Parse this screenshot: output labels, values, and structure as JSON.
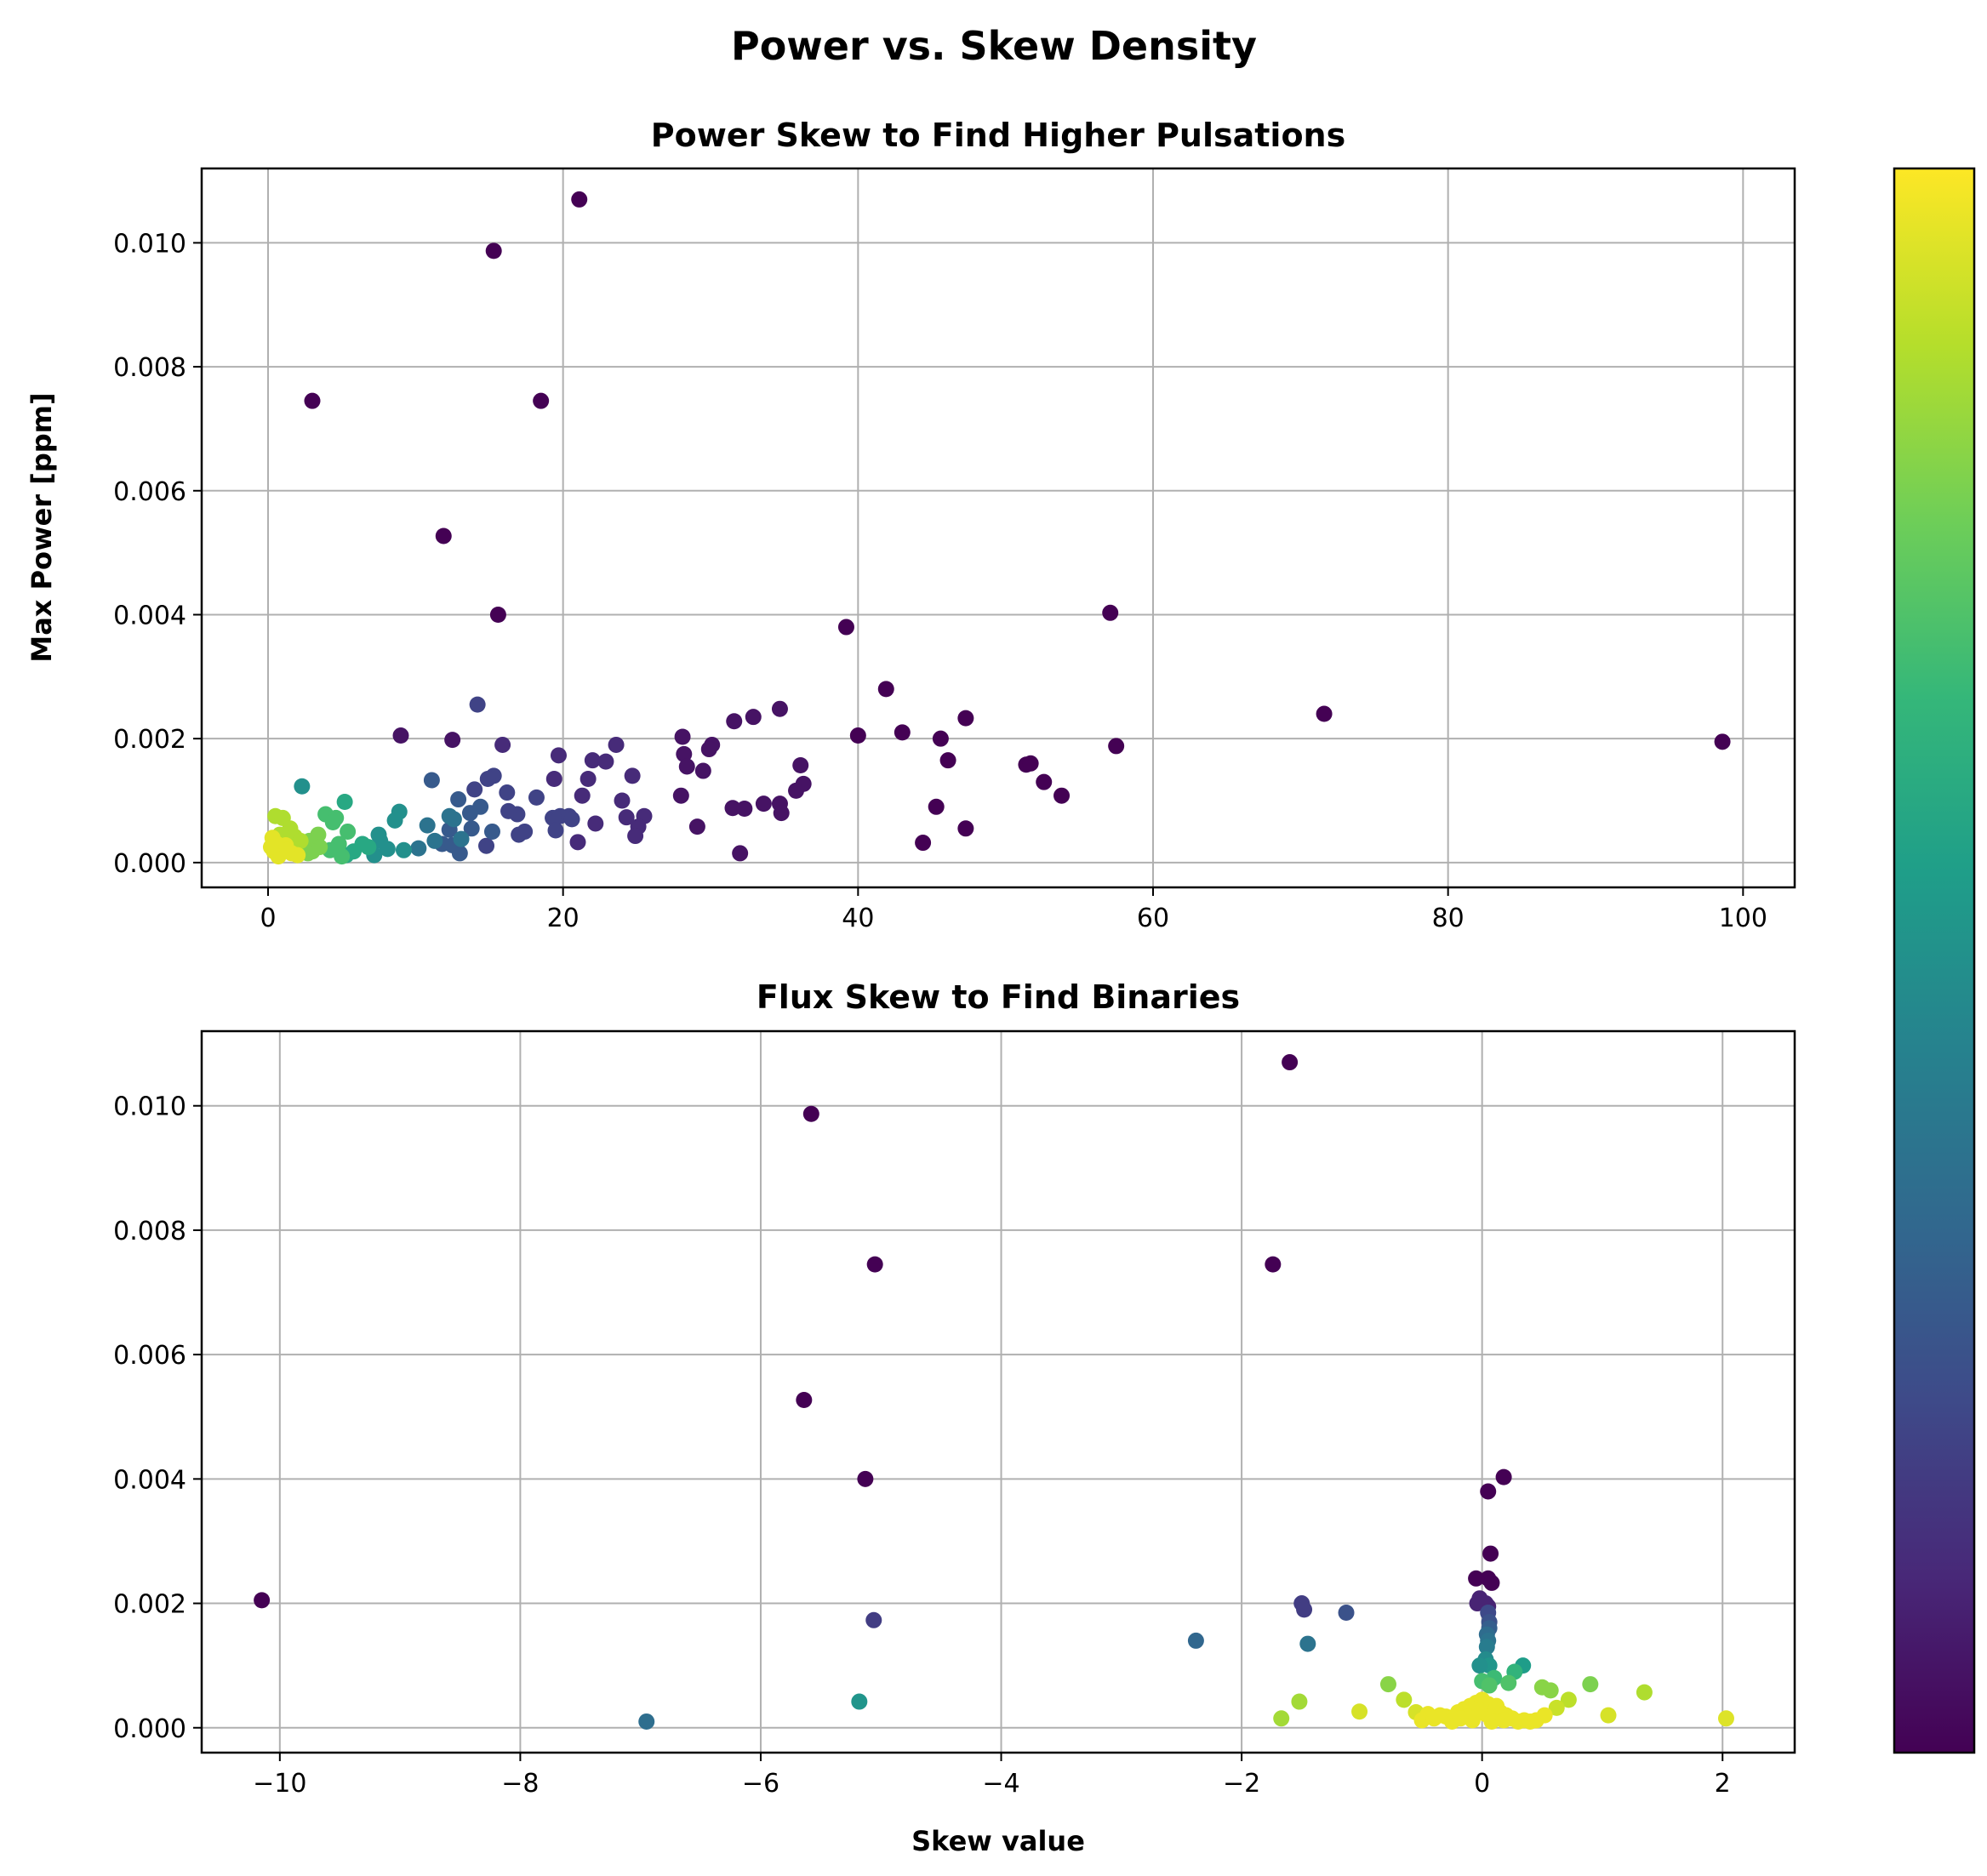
{
  "figure": {
    "title": "Power vs. Skew Density",
    "colormap": "viridis",
    "colormap_stops": [
      "#440154",
      "#482878",
      "#3e4a89",
      "#31688e",
      "#26828e",
      "#1f9e89",
      "#35b779",
      "#6ece58",
      "#b5de2b",
      "#fde725"
    ]
  },
  "chart_data": [
    {
      "type": "scatter",
      "title": "Power Skew to Find Higher Pulsations",
      "xlabel": "",
      "ylabel": "Max Power [ppm]",
      "xlim": [
        -4.5,
        103.5
      ],
      "ylim": [
        -0.0004,
        0.0112
      ],
      "xticks": [
        0,
        20,
        40,
        60,
        80,
        100
      ],
      "yticks": [
        0.0,
        0.002,
        0.004,
        0.006,
        0.008,
        0.01
      ],
      "ytick_labels": [
        "0.000",
        "0.002",
        "0.004",
        "0.006",
        "0.008",
        "0.010"
      ],
      "grid": true,
      "points": [
        [
          21.1,
          0.0107,
          0.0
        ],
        [
          15.3,
          0.00987,
          0.0
        ],
        [
          3.0,
          0.00745,
          0.0
        ],
        [
          18.5,
          0.00745,
          0.0
        ],
        [
          11.9,
          0.00527,
          0.0
        ],
        [
          15.6,
          0.004,
          0.0
        ],
        [
          39.2,
          0.0038,
          0.0
        ],
        [
          57.1,
          0.00403,
          0.0
        ],
        [
          41.9,
          0.0028,
          0.0
        ],
        [
          71.6,
          0.0024,
          0.0
        ],
        [
          98.6,
          0.00195,
          0.0
        ],
        [
          47.3,
          0.00233,
          0.0
        ],
        [
          43.0,
          0.0021,
          0.0
        ],
        [
          45.6,
          0.002,
          0.0
        ],
        [
          57.5,
          0.00188,
          0.0
        ],
        [
          46.1,
          0.00165,
          0.0
        ],
        [
          51.4,
          0.00158,
          0.0
        ],
        [
          51.7,
          0.0016,
          0.0
        ],
        [
          52.6,
          0.0013,
          0.0
        ],
        [
          53.8,
          0.00108,
          0.0
        ],
        [
          45.3,
          0.0009,
          0.0
        ],
        [
          44.4,
          0.00032,
          0.0
        ],
        [
          47.3,
          0.00055,
          0.0
        ],
        [
          40.0,
          0.00205,
          0.0
        ],
        [
          9.0,
          0.00205,
          0.05
        ],
        [
          12.5,
          0.00198,
          0.05
        ],
        [
          34.7,
          0.00248,
          0.05
        ],
        [
          32.9,
          0.00235,
          0.05
        ],
        [
          31.6,
          0.00228,
          0.05
        ],
        [
          28.1,
          0.00203,
          0.05
        ],
        [
          28.2,
          0.00175,
          0.05
        ],
        [
          30.1,
          0.0019,
          0.05
        ],
        [
          29.9,
          0.00183,
          0.05
        ],
        [
          29.5,
          0.00148,
          0.05
        ],
        [
          28.4,
          0.00155,
          0.05
        ],
        [
          36.1,
          0.00157,
          0.05
        ],
        [
          36.3,
          0.00127,
          0.05
        ],
        [
          35.8,
          0.00116,
          0.05
        ],
        [
          28.0,
          0.00108,
          0.05
        ],
        [
          29.1,
          0.00058,
          0.05
        ],
        [
          31.5,
          0.00088,
          0.05
        ],
        [
          32.3,
          0.00087,
          0.05
        ],
        [
          33.6,
          0.00095,
          0.05
        ],
        [
          34.7,
          0.00095,
          0.05
        ],
        [
          34.8,
          0.0008,
          0.05
        ],
        [
          32.0,
          0.00015,
          0.05
        ],
        [
          15.9,
          0.0019,
          0.12
        ],
        [
          23.6,
          0.0019,
          0.12
        ],
        [
          19.7,
          0.00173,
          0.12
        ],
        [
          22.0,
          0.00165,
          0.12
        ],
        [
          22.9,
          0.00163,
          0.12
        ],
        [
          24.7,
          0.0014,
          0.12
        ],
        [
          21.7,
          0.00135,
          0.12
        ],
        [
          19.4,
          0.00135,
          0.12
        ],
        [
          21.3,
          0.00108,
          0.12
        ],
        [
          24.0,
          0.001,
          0.12
        ],
        [
          24.3,
          0.00073,
          0.12
        ],
        [
          25.5,
          0.00075,
          0.12
        ],
        [
          25.1,
          0.00058,
          0.12
        ],
        [
          24.9,
          0.00043,
          0.12
        ],
        [
          22.2,
          0.00063,
          0.12
        ],
        [
          21.0,
          0.00033,
          0.12
        ],
        [
          15.3,
          0.0014,
          0.2
        ],
        [
          14.9,
          0.00135,
          0.2
        ],
        [
          16.2,
          0.00113,
          0.2
        ],
        [
          18.2,
          0.00105,
          0.2
        ],
        [
          19.3,
          0.00072,
          0.2
        ],
        [
          19.8,
          0.00075,
          0.2
        ],
        [
          20.4,
          0.00075,
          0.2
        ],
        [
          20.6,
          0.0007,
          0.2
        ],
        [
          19.5,
          0.00052,
          0.2
        ],
        [
          17.4,
          0.0005,
          0.2
        ],
        [
          17.0,
          0.00045,
          0.2
        ],
        [
          16.9,
          0.00078,
          0.2
        ],
        [
          16.3,
          0.00083,
          0.2
        ],
        [
          14.2,
          0.00255,
          0.2
        ],
        [
          14.8,
          0.00027,
          0.2
        ],
        [
          14.0,
          0.00118,
          0.2
        ],
        [
          11.1,
          0.00133,
          0.28
        ],
        [
          14.4,
          0.0009,
          0.28
        ],
        [
          13.7,
          0.0008,
          0.28
        ],
        [
          12.9,
          0.00102,
          0.28
        ],
        [
          13.8,
          0.00055,
          0.28
        ],
        [
          12.3,
          0.00053,
          0.28
        ],
        [
          15.2,
          0.0005,
          0.28
        ],
        [
          11.8,
          0.0003,
          0.28
        ],
        [
          12.5,
          0.00028,
          0.28
        ],
        [
          13.0,
          0.00015,
          0.28
        ],
        [
          10.8,
          0.0006,
          0.38
        ],
        [
          12.6,
          0.0007,
          0.38
        ],
        [
          10.2,
          0.00023,
          0.38
        ],
        [
          12.3,
          0.00075,
          0.38
        ],
        [
          13.1,
          0.00038,
          0.38
        ],
        [
          11.3,
          0.00035,
          0.38
        ],
        [
          8.9,
          0.00082,
          0.5
        ],
        [
          8.6,
          0.00068,
          0.5
        ],
        [
          7.5,
          0.00045,
          0.5
        ],
        [
          7.6,
          0.00035,
          0.5
        ],
        [
          2.3,
          0.00123,
          0.5
        ],
        [
          9.2,
          0.0002,
          0.5
        ],
        [
          7.2,
          0.00012,
          0.5
        ],
        [
          8.1,
          0.00022,
          0.5
        ],
        [
          5.2,
          0.00098,
          0.6
        ],
        [
          6.4,
          0.0003,
          0.6
        ],
        [
          6.8,
          0.00025,
          0.6
        ],
        [
          5.8,
          0.00018,
          0.6
        ],
        [
          5.3,
          0.00012,
          0.6
        ],
        [
          3.9,
          0.00078,
          0.7
        ],
        [
          4.6,
          0.00072,
          0.7
        ],
        [
          4.4,
          0.00065,
          0.7
        ],
        [
          5.4,
          0.0005,
          0.7
        ],
        [
          4.8,
          0.0003,
          0.7
        ],
        [
          4.2,
          0.0002,
          0.7
        ],
        [
          5.0,
          0.0001,
          0.7
        ],
        [
          3.4,
          0.00045,
          0.8
        ],
        [
          2.8,
          0.00035,
          0.8
        ],
        [
          3.5,
          0.00025,
          0.8
        ],
        [
          3.0,
          0.00018,
          0.8
        ],
        [
          2.7,
          0.00015,
          0.8
        ],
        [
          0.5,
          0.00075,
          0.88
        ],
        [
          1.0,
          0.00072,
          0.88
        ],
        [
          1.5,
          0.00055,
          0.88
        ],
        [
          0.8,
          0.00045,
          0.88
        ],
        [
          1.8,
          0.00042,
          0.88
        ],
        [
          2.2,
          0.00035,
          0.88
        ],
        [
          0.3,
          0.0004,
          0.96
        ],
        [
          0.6,
          0.0003,
          0.96
        ],
        [
          1.2,
          0.00028,
          0.96
        ],
        [
          0.9,
          0.00022,
          0.96
        ],
        [
          0.4,
          0.00018,
          0.96
        ],
        [
          1.6,
          0.00015,
          0.96
        ],
        [
          0.7,
          0.0001,
          0.96
        ],
        [
          2.0,
          0.00012,
          0.96
        ],
        [
          0.2,
          0.00025,
          0.96
        ],
        [
          1.3,
          0.0002,
          0.96
        ]
      ]
    },
    {
      "type": "scatter",
      "title": "Flux Skew to Find Binaries",
      "xlabel": "Skew value",
      "ylabel": "",
      "xlim": [
        -10.65,
        2.6
      ],
      "ylim": [
        -0.0004,
        0.0112
      ],
      "xticks": [
        -10,
        -8,
        -6,
        -4,
        -2,
        0,
        2
      ],
      "xtick_labels": [
        "−10",
        "−8",
        "−6",
        "−4",
        "−2",
        "0",
        "2"
      ],
      "yticks": [
        0.0,
        0.002,
        0.004,
        0.006,
        0.008,
        0.01
      ],
      "ytick_labels": [
        "0.000",
        "0.002",
        "0.004",
        "0.006",
        "0.008",
        "0.010"
      ],
      "grid": true,
      "points": [
        [
          -1.6,
          0.0107,
          0.0
        ],
        [
          -5.58,
          0.00987,
          0.0
        ],
        [
          -5.05,
          0.00745,
          0.0
        ],
        [
          -1.74,
          0.00745,
          0.0
        ],
        [
          -5.64,
          0.00527,
          0.0
        ],
        [
          -5.13,
          0.004,
          0.0
        ],
        [
          -10.15,
          0.00205,
          0.0
        ],
        [
          0.05,
          0.0038,
          0.0
        ],
        [
          0.18,
          0.00403,
          0.0
        ],
        [
          0.07,
          0.0028,
          0.0
        ],
        [
          0.05,
          0.0024,
          0.0
        ],
        [
          0.08,
          0.00233,
          0.0
        ],
        [
          -0.05,
          0.0024,
          0.0
        ],
        [
          -0.02,
          0.00208,
          0.1
        ],
        [
          0.03,
          0.002,
          0.1
        ],
        [
          -0.04,
          0.002,
          0.1
        ],
        [
          0.05,
          0.00195,
          0.1
        ],
        [
          -1.5,
          0.002,
          0.18
        ],
        [
          -1.48,
          0.0019,
          0.18
        ],
        [
          -5.06,
          0.00173,
          0.18
        ],
        [
          -1.13,
          0.00185,
          0.25
        ],
        [
          0.05,
          0.00185,
          0.22
        ],
        [
          0.06,
          0.0017,
          0.25
        ],
        [
          0.06,
          0.0016,
          0.3
        ],
        [
          0.04,
          0.0015,
          0.35
        ],
        [
          0.05,
          0.0014,
          0.38
        ],
        [
          -2.38,
          0.0014,
          0.33
        ],
        [
          -1.45,
          0.00135,
          0.38
        ],
        [
          0.04,
          0.0013,
          0.42
        ],
        [
          -6.95,
          0.0001,
          0.36
        ],
        [
          0.03,
          0.0011,
          0.48
        ],
        [
          0.06,
          0.001,
          0.52
        ],
        [
          -0.02,
          0.001,
          0.5
        ],
        [
          0.34,
          0.001,
          0.55
        ],
        [
          -5.18,
          0.00042,
          0.52
        ],
        [
          0.27,
          0.0009,
          0.65
        ],
        [
          0.1,
          0.0008,
          0.68
        ],
        [
          0.0,
          0.00075,
          0.7
        ],
        [
          0.22,
          0.00072,
          0.72
        ],
        [
          0.06,
          0.00068,
          0.72
        ],
        [
          0.5,
          0.00065,
          0.82
        ],
        [
          0.57,
          0.0006,
          0.82
        ],
        [
          -0.78,
          0.0007,
          0.82
        ],
        [
          0.9,
          0.0007,
          0.8
        ],
        [
          -1.52,
          0.00042,
          0.86
        ],
        [
          -1.67,
          0.00015,
          0.86
        ],
        [
          1.35,
          0.00057,
          0.88
        ],
        [
          0.72,
          0.00045,
          0.9
        ],
        [
          -0.65,
          0.00045,
          0.9
        ],
        [
          0.62,
          0.00032,
          0.92
        ],
        [
          -0.55,
          0.00025,
          0.94
        ],
        [
          -1.02,
          0.00026,
          0.94
        ],
        [
          1.05,
          0.0002,
          0.94
        ],
        [
          2.03,
          0.00015,
          0.95
        ],
        [
          -0.45,
          0.00022,
          0.97
        ],
        [
          -0.35,
          0.0002,
          0.97
        ],
        [
          -0.3,
          0.00018,
          0.97
        ],
        [
          -0.2,
          0.00025,
          0.97
        ],
        [
          -0.15,
          0.0003,
          0.97
        ],
        [
          -0.1,
          0.00035,
          0.97
        ],
        [
          -0.05,
          0.0004,
          0.97
        ],
        [
          0.0,
          0.00045,
          0.97
        ],
        [
          0.05,
          0.00038,
          0.97
        ],
        [
          0.1,
          0.0003,
          0.97
        ],
        [
          0.15,
          0.00025,
          0.97
        ],
        [
          0.2,
          0.0002,
          0.97
        ],
        [
          0.25,
          0.00015,
          0.97
        ],
        [
          0.3,
          0.0001,
          0.97
        ],
        [
          0.35,
          0.00012,
          0.97
        ],
        [
          0.4,
          0.0001,
          0.97
        ],
        [
          0.45,
          0.00012,
          0.97
        ],
        [
          0.52,
          0.0002,
          0.97
        ],
        [
          -0.5,
          0.00012,
          0.97
        ],
        [
          -0.4,
          0.00015,
          0.97
        ],
        [
          -0.25,
          0.0001,
          0.97
        ],
        [
          -0.08,
          0.00012,
          0.97
        ],
        [
          0.08,
          0.0001,
          0.97
        ],
        [
          0.18,
          0.00012,
          0.97
        ],
        [
          -0.12,
          0.00018,
          0.97
        ],
        [
          0.03,
          0.00022,
          0.97
        ],
        [
          -0.02,
          0.00028,
          0.97
        ],
        [
          0.12,
          0.00035,
          0.97
        ],
        [
          -0.18,
          0.00015,
          0.97
        ]
      ]
    }
  ]
}
